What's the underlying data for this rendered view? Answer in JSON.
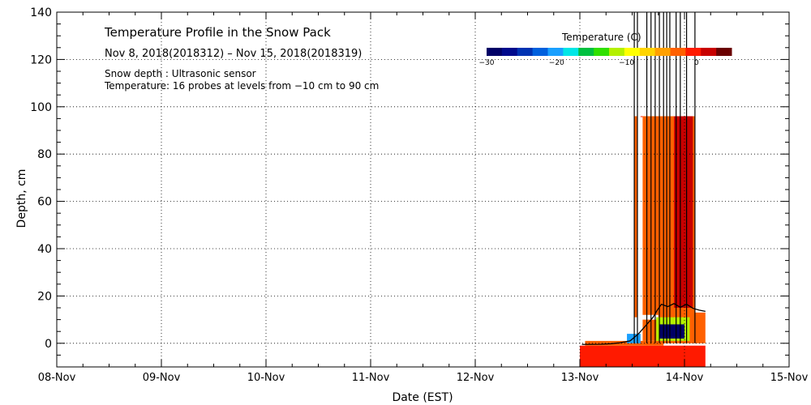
{
  "chart_data": {
    "type": "heatmap",
    "title": "Temperature Profile in the Snow Pack",
    "subtitle": "Nov  8, 2018(2018312) – Nov 15, 2018(2018319)",
    "annotations": [
      "Snow depth : Ultrasonic sensor",
      "Temperature: 16 probes at levels from −10 cm to 90 cm"
    ],
    "xlabel": "Date (EST)",
    "ylabel": "Depth, cm",
    "x_ticks": [
      "08-Nov",
      "09-Nov",
      "10-Nov",
      "11-Nov",
      "12-Nov",
      "13-Nov",
      "14-Nov",
      "15-Nov"
    ],
    "xlim": [
      0,
      7
    ],
    "ylim": [
      -10,
      140
    ],
    "y_ticks": [
      0,
      20,
      40,
      60,
      80,
      100,
      120,
      140
    ],
    "grid": true,
    "colorbar": {
      "label": "Temperature (C)",
      "ticks": [
        "−30",
        "−20",
        "−10",
        "0"
      ],
      "range": [
        -30,
        5
      ],
      "colors": [
        "#000066",
        "#000a8c",
        "#0033b2",
        "#0060dd",
        "#1aa0ff",
        "#00e6e6",
        "#00c040",
        "#30e000",
        "#b4f000",
        "#ffff00",
        "#ffd400",
        "#ffa000",
        "#ff6000",
        "#ff1a00",
        "#c80000",
        "#6a0000"
      ]
    },
    "snow_depth_series": [
      [
        5.02,
        -0.5
      ],
      [
        5.2,
        -0.4
      ],
      [
        5.3,
        -0.2
      ],
      [
        5.38,
        0.2
      ],
      [
        5.48,
        1.0
      ],
      [
        5.52,
        2.5
      ],
      [
        5.56,
        4.0
      ],
      [
        5.6,
        6.0
      ],
      [
        5.66,
        9.0
      ],
      [
        5.7,
        11.0
      ],
      [
        5.74,
        14.0
      ],
      [
        5.78,
        16.5
      ],
      [
        5.84,
        15.5
      ],
      [
        5.9,
        16.8
      ],
      [
        5.96,
        15.2
      ],
      [
        6.02,
        16.5
      ],
      [
        6.08,
        14.8
      ],
      [
        6.14,
        14.0
      ],
      [
        6.2,
        13.5
      ]
    ],
    "cells": [
      {
        "x": [
          5.0,
          6.2
        ],
        "y": [
          -10,
          -1
        ],
        "temp": 0
      },
      {
        "x": [
          5.05,
          5.8
        ],
        "y": [
          -1,
          1
        ],
        "temp": -2
      },
      {
        "x": [
          5.45,
          5.58
        ],
        "y": [
          0,
          4
        ],
        "temp": -20
      },
      {
        "x": [
          5.6,
          5.75
        ],
        "y": [
          1,
          10
        ],
        "temp": -2
      },
      {
        "x": [
          5.58,
          5.75
        ],
        "y": [
          96,
          96
        ],
        "temp": -1
      },
      {
        "x": [
          5.75,
          6.2
        ],
        "y": [
          0,
          13
        ],
        "temp": -2
      },
      {
        "x": [
          5.73,
          6.05
        ],
        "y": [
          1,
          11
        ],
        "temp": -12
      },
      {
        "x": [
          5.76,
          6.0
        ],
        "y": [
          2,
          8
        ],
        "temp": -29
      },
      {
        "x": [
          5.52,
          5.55
        ],
        "y": [
          11,
          96
        ],
        "temp": -2
      },
      {
        "x": [
          5.6,
          6.1
        ],
        "y": [
          12,
          96
        ],
        "temp": -2
      },
      {
        "x": [
          5.9,
          6.08
        ],
        "y": [
          15,
          96
        ],
        "temp": 2
      }
    ],
    "vertical_lines_x": [
      5.52,
      5.55,
      5.64,
      5.68,
      5.72,
      5.76,
      5.8,
      5.83,
      5.86,
      5.92,
      5.96,
      6.02,
      6.1
    ]
  }
}
